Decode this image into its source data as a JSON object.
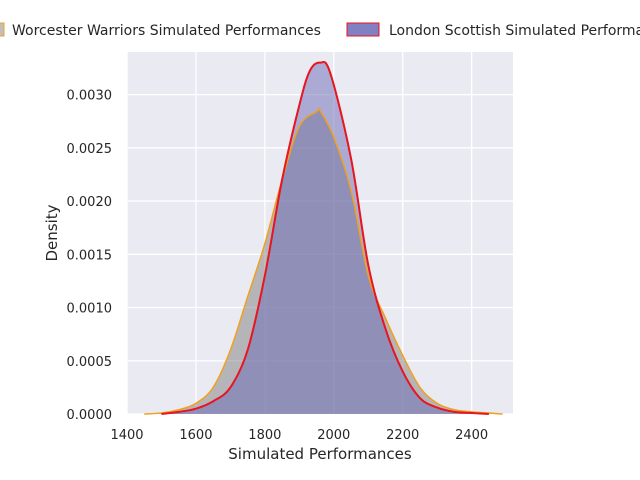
{
  "chart_data": {
    "type": "area",
    "title": "",
    "xlabel": "Simulated Performances",
    "ylabel": "Density",
    "xlim": [
      1400,
      2520
    ],
    "ylim": [
      0,
      0.0034
    ],
    "xticks": [
      1400,
      1600,
      1800,
      2000,
      2200,
      2400
    ],
    "xtick_labels": [
      "1400",
      "1600",
      "1800",
      "2000",
      "2200",
      "2400"
    ],
    "yticks": [
      0,
      0.0005,
      0.001,
      0.0015,
      0.002,
      0.0025,
      0.003
    ],
    "ytick_labels": [
      "0.0000",
      "0.0005",
      "0.0010",
      "0.0015",
      "0.0020",
      "0.0025",
      "0.0030"
    ],
    "grid": true,
    "legend_position": "top",
    "series": [
      {
        "name": "Worcester Warriors Simulated Performances",
        "fill_color": "#808080",
        "line_color": "#f0a020",
        "x": [
          1450,
          1500,
          1550,
          1600,
          1650,
          1700,
          1750,
          1800,
          1850,
          1900,
          1950,
          1960,
          2000,
          2050,
          2100,
          2150,
          2200,
          2250,
          2300,
          2350,
          2400,
          2450,
          2490
        ],
        "y": [
          0.0,
          1e-05,
          4e-05,
          0.0001,
          0.00025,
          0.0006,
          0.0011,
          0.0016,
          0.0022,
          0.0027,
          0.00284,
          0.00285,
          0.0026,
          0.0021,
          0.0013,
          0.0009,
          0.00055,
          0.00025,
          0.0001,
          4e-05,
          2e-05,
          1e-05,
          0.0
        ]
      },
      {
        "name": "London Scottish Simulated Performances",
        "fill_color": "#6a6ab8",
        "line_color": "#e8141e",
        "x": [
          1500,
          1550,
          1600,
          1650,
          1700,
          1750,
          1800,
          1850,
          1900,
          1930,
          1960,
          1990,
          2050,
          2100,
          2150,
          2200,
          2250,
          2300,
          2350,
          2400,
          2450
        ],
        "y": [
          0.0,
          2e-05,
          5e-05,
          0.00012,
          0.00025,
          0.0006,
          0.0013,
          0.0022,
          0.0029,
          0.00322,
          0.0033,
          0.0032,
          0.0024,
          0.0014,
          0.0008,
          0.0004,
          0.00015,
          6e-05,
          2e-05,
          1e-05,
          0.0
        ]
      }
    ]
  }
}
